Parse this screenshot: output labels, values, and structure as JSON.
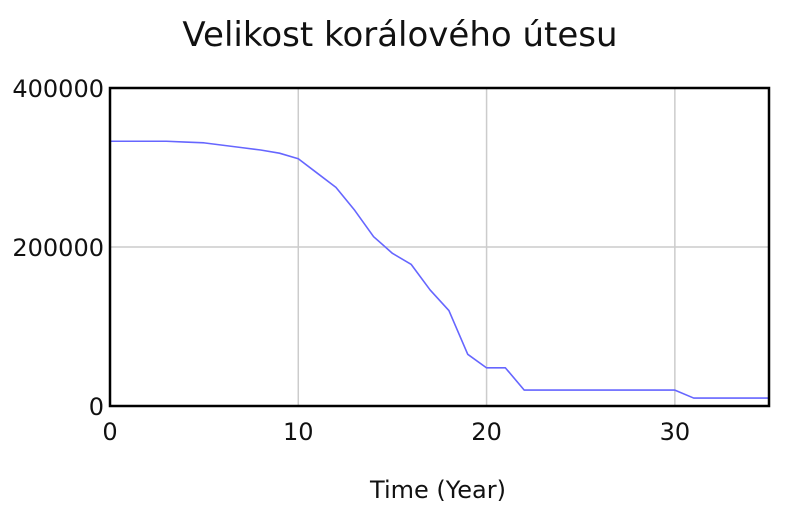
{
  "chart_data": {
    "type": "line",
    "title": "Velikost korálového útesu",
    "xlabel": "Time (Year)",
    "ylabel": "",
    "xlim": [
      0,
      35
    ],
    "ylim": [
      0,
      400000
    ],
    "xticks": [
      0,
      10,
      20,
      30
    ],
    "yticks": [
      0,
      200000,
      400000
    ],
    "x_tick_labels": [
      "0",
      "10",
      "20",
      "30"
    ],
    "y_tick_labels": [
      "0",
      "200000",
      "400000"
    ],
    "grid": true,
    "legend": "none",
    "series": [
      {
        "color": "#6666ff",
        "x": [
          0,
          1,
          2,
          3,
          4,
          5,
          6,
          7,
          8,
          9,
          10,
          11,
          12,
          13,
          14,
          15,
          16,
          17,
          18,
          19,
          20,
          21,
          22,
          23,
          24,
          25,
          26,
          27,
          28,
          29,
          30,
          31,
          32,
          33,
          34,
          35
        ],
        "values": [
          333000,
          333000,
          333000,
          333000,
          332000,
          331000,
          328000,
          325000,
          322000,
          318000,
          311000,
          293000,
          275000,
          246000,
          213000,
          192000,
          178000,
          146000,
          120000,
          65000,
          48000,
          48000,
          20000,
          20000,
          20000,
          20000,
          20000,
          20000,
          20000,
          20000,
          20000,
          10000,
          10000,
          10000,
          10000,
          10000
        ]
      }
    ]
  }
}
